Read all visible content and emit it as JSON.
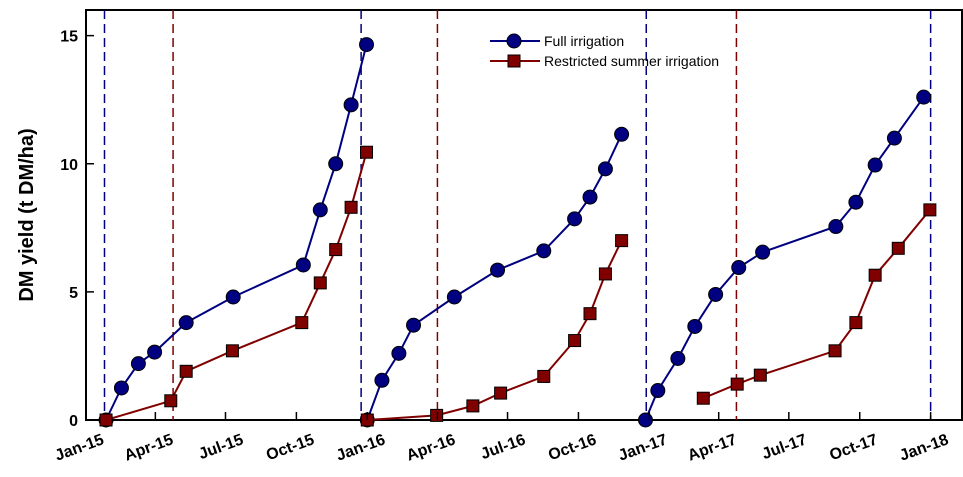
{
  "chart_data": {
    "type": "line",
    "title": "",
    "xlabel": "",
    "ylabel": "DM yield (t DM/ha)",
    "ylim": [
      0,
      16
    ],
    "y_ticks": [
      "0",
      "5",
      "10",
      "15"
    ],
    "x_range": [
      "2015-01-01",
      "2018-02-12"
    ],
    "x_tick_labels": [
      {
        "date": "2015-01-01",
        "label": "Jan-15"
      },
      {
        "date": "2015-04-01",
        "label": "Apr-15"
      },
      {
        "date": "2015-07-01",
        "label": "Jul-15"
      },
      {
        "date": "2015-10-01",
        "label": "Oct-15"
      },
      {
        "date": "2016-01-01",
        "label": "Jan-16"
      },
      {
        "date": "2016-04-01",
        "label": "Apr-16"
      },
      {
        "date": "2016-07-01",
        "label": "Jul-16"
      },
      {
        "date": "2016-10-01",
        "label": "Oct-16"
      },
      {
        "date": "2017-01-01",
        "label": "Jan-17"
      },
      {
        "date": "2017-04-01",
        "label": "Apr-17"
      },
      {
        "date": "2017-07-01",
        "label": "Jul-17"
      },
      {
        "date": "2017-10-01",
        "label": "Oct-17"
      },
      {
        "date": "2018-01-01",
        "label": "Jan-18"
      }
    ],
    "legend_position": "top-right",
    "grid": false,
    "vertical_lines": [
      {
        "date": "2015-01-25",
        "color": "#000080"
      },
      {
        "date": "2015-04-24",
        "color": "#800000"
      },
      {
        "date": "2015-12-24",
        "color": "#000080"
      },
      {
        "date": "2016-04-01",
        "color": "#800000"
      },
      {
        "date": "2016-12-28",
        "color": "#000080"
      },
      {
        "date": "2017-04-24",
        "color": "#800000"
      },
      {
        "date": "2018-01-01",
        "color": "#000080"
      }
    ],
    "series": [
      {
        "name": "Full irrigation",
        "color": "#000080",
        "marker": "circle",
        "segments": [
          [
            {
              "x": "2015-01-27",
              "y": 0
            },
            {
              "x": "2015-02-16",
              "y": 1.25
            },
            {
              "x": "2015-03-10",
              "y": 2.2
            },
            {
              "x": "2015-03-31",
              "y": 2.65
            },
            {
              "x": "2015-05-11",
              "y": 3.8
            },
            {
              "x": "2015-07-11",
              "y": 4.8
            },
            {
              "x": "2015-10-10",
              "y": 6.05
            },
            {
              "x": "2015-11-01",
              "y": 8.2
            },
            {
              "x": "2015-11-21",
              "y": 10.0
            },
            {
              "x": "2015-12-11",
              "y": 12.3
            },
            {
              "x": "2015-12-31",
              "y": 14.65
            }
          ],
          [
            {
              "x": "2016-01-01",
              "y": 0
            },
            {
              "x": "2016-01-20",
              "y": 1.55
            },
            {
              "x": "2016-02-11",
              "y": 2.6
            },
            {
              "x": "2016-03-01",
              "y": 3.7
            },
            {
              "x": "2016-04-23",
              "y": 4.8
            },
            {
              "x": "2016-06-18",
              "y": 5.85
            },
            {
              "x": "2016-08-17",
              "y": 6.6
            },
            {
              "x": "2016-09-26",
              "y": 7.85
            },
            {
              "x": "2016-10-16",
              "y": 8.7
            },
            {
              "x": "2016-11-05",
              "y": 9.8
            },
            {
              "x": "2016-11-26",
              "y": 11.15
            }
          ],
          [
            {
              "x": "2016-12-27",
              "y": 0
            },
            {
              "x": "2017-01-12",
              "y": 1.15
            },
            {
              "x": "2017-02-07",
              "y": 2.4
            },
            {
              "x": "2017-03-01",
              "y": 3.65
            },
            {
              "x": "2017-03-28",
              "y": 4.9
            },
            {
              "x": "2017-04-27",
              "y": 5.95
            },
            {
              "x": "2017-05-28",
              "y": 6.55
            },
            {
              "x": "2017-08-31",
              "y": 7.55
            },
            {
              "x": "2017-09-26",
              "y": 8.5
            },
            {
              "x": "2017-10-21",
              "y": 9.95
            },
            {
              "x": "2017-11-15",
              "y": 11.0
            },
            {
              "x": "2017-12-23",
              "y": 12.6
            }
          ]
        ]
      },
      {
        "name": "Restricted summer irrigation",
        "color": "#800000",
        "marker": "square",
        "segments": [
          [
            {
              "x": "2015-01-27",
              "y": 0
            },
            {
              "x": "2015-04-21",
              "y": 0.75
            },
            {
              "x": "2015-05-11",
              "y": 1.9
            },
            {
              "x": "2015-07-10",
              "y": 2.7
            },
            {
              "x": "2015-10-08",
              "y": 3.8
            },
            {
              "x": "2015-11-01",
              "y": 5.35
            },
            {
              "x": "2015-11-21",
              "y": 6.65
            },
            {
              "x": "2015-12-11",
              "y": 8.3
            },
            {
              "x": "2015-12-31",
              "y": 10.45
            }
          ],
          [
            {
              "x": "2016-01-01",
              "y": 0
            },
            {
              "x": "2016-03-31",
              "y": 0.18
            },
            {
              "x": "2016-05-17",
              "y": 0.55
            },
            {
              "x": "2016-06-22",
              "y": 1.05
            },
            {
              "x": "2016-08-17",
              "y": 1.7
            },
            {
              "x": "2016-09-26",
              "y": 3.1
            },
            {
              "x": "2016-10-16",
              "y": 4.15
            },
            {
              "x": "2016-11-05",
              "y": 5.7
            },
            {
              "x": "2016-11-26",
              "y": 7.0
            }
          ],
          [
            {
              "x": "2017-03-12",
              "y": 0.85
            },
            {
              "x": "2017-04-25",
              "y": 1.4
            },
            {
              "x": "2017-05-25",
              "y": 1.75
            },
            {
              "x": "2017-08-30",
              "y": 2.7
            },
            {
              "x": "2017-09-26",
              "y": 3.8
            },
            {
              "x": "2017-10-21",
              "y": 5.65
            },
            {
              "x": "2017-11-20",
              "y": 6.7
            },
            {
              "x": "2017-12-31",
              "y": 8.2
            }
          ]
        ]
      }
    ]
  }
}
